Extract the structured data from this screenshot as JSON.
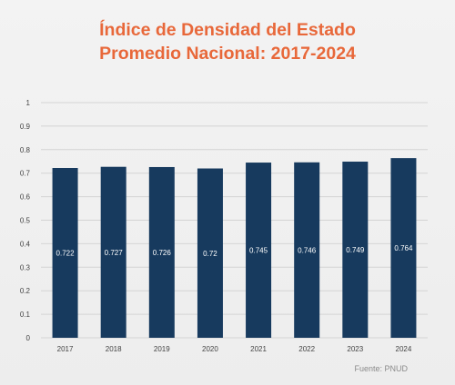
{
  "title_line1": "Índice de Densidad del Estado",
  "title_line2": "Promedio Nacional: 2017-2024",
  "source": "Fuente: PNUD",
  "colors": {
    "bar": "#173a5e",
    "title": "#e8683a",
    "grid": "#d4d4d4",
    "bar_label": "#ffffff"
  },
  "chart_data": {
    "type": "bar",
    "categories": [
      "2017",
      "2018",
      "2019",
      "2020",
      "2021",
      "2022",
      "2023",
      "2024"
    ],
    "values": [
      0.722,
      0.727,
      0.726,
      0.72,
      0.745,
      0.746,
      0.749,
      0.764
    ],
    "value_labels": [
      "0.722",
      "0.727",
      "0.726",
      "0.72",
      "0.745",
      "0.746",
      "0.749",
      "0.764"
    ],
    "yticks": [
      0,
      0.1,
      0.2,
      0.3,
      0.4,
      0.5,
      0.6,
      0.7,
      0.8,
      0.9,
      1
    ],
    "ytick_labels": [
      "0",
      "0.1",
      "0.2",
      "0.3",
      "0.4",
      "0.5",
      "0.6",
      "0.7",
      "0.8",
      "0.9",
      "1"
    ],
    "ylim": [
      0,
      1
    ],
    "xlabel": "",
    "ylabel": "",
    "grid": true,
    "legend": false
  }
}
